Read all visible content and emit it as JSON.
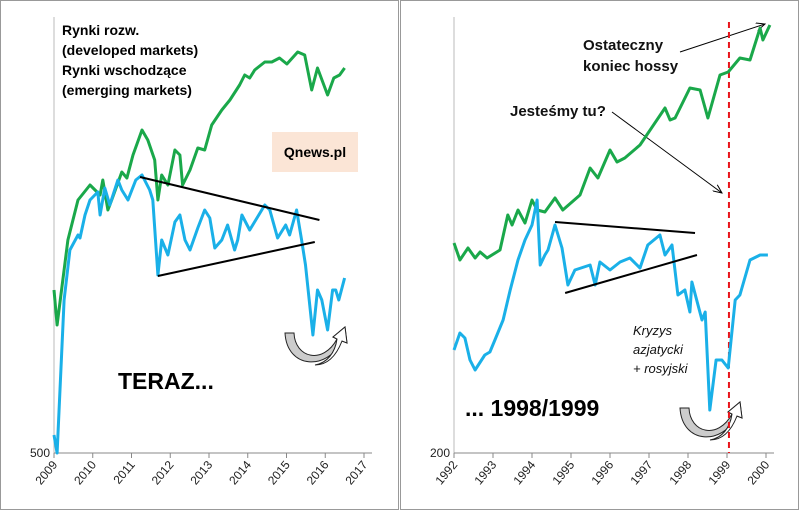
{
  "colors": {
    "developed": "#1aa84a",
    "emerging": "#1ab0e8",
    "trend": "#000000",
    "marker": "#e8141b",
    "badge_bg": "#fbe5d6"
  },
  "chart_data": [
    {
      "type": "line",
      "title": "",
      "xlabel": "",
      "ylabel": "",
      "xlim": [
        2009,
        2017
      ],
      "ylim": [
        500,
        936
      ],
      "x_ticks": [
        "2009",
        "2010",
        "2011",
        "2012",
        "2013",
        "2014",
        "2015",
        "2016",
        "2017"
      ],
      "y_ticks": [
        "500"
      ],
      "grid": false,
      "legend": [
        "Rynki rozw.",
        "(developed markets)",
        "Rynki wschodzące",
        "(emerging markets)"
      ],
      "legend_placement": "top-left",
      "badge": "Qnews.pl",
      "label": "TERAZ...",
      "series": [
        {
          "name": "Rynki rozw. (developed markets)",
          "color_key": "developed",
          "points": [
            [
              2009.0,
              663
            ],
            [
              2009.08,
              628
            ],
            [
              2009.36,
              713
            ],
            [
              2009.62,
              753
            ],
            [
              2009.93,
              768
            ],
            [
              2010.19,
              758
            ],
            [
              2010.26,
              773
            ],
            [
              2010.39,
              743
            ],
            [
              2010.49,
              753
            ],
            [
              2010.75,
              781
            ],
            [
              2010.88,
              775
            ],
            [
              2011.04,
              798
            ],
            [
              2011.27,
              823
            ],
            [
              2011.42,
              813
            ],
            [
              2011.6,
              793
            ],
            [
              2011.68,
              753
            ],
            [
              2011.78,
              778
            ],
            [
              2011.94,
              768
            ],
            [
              2012.12,
              803
            ],
            [
              2012.25,
              798
            ],
            [
              2012.32,
              768
            ],
            [
              2012.51,
              783
            ],
            [
              2012.71,
              805
            ],
            [
              2012.89,
              803
            ],
            [
              2013.07,
              828
            ],
            [
              2013.33,
              843
            ],
            [
              2013.54,
              853
            ],
            [
              2013.79,
              868
            ],
            [
              2013.92,
              878
            ],
            [
              2014.05,
              875
            ],
            [
              2014.18,
              883
            ],
            [
              2014.44,
              891
            ],
            [
              2014.62,
              891
            ],
            [
              2014.82,
              895
            ],
            [
              2015.01,
              889
            ],
            [
              2015.29,
              901
            ],
            [
              2015.47,
              898
            ],
            [
              2015.65,
              863
            ],
            [
              2015.8,
              885
            ],
            [
              2016.06,
              858
            ],
            [
              2016.22,
              875
            ],
            [
              2016.37,
              878
            ],
            [
              2016.5,
              885
            ]
          ]
        },
        {
          "name": "Rynki wschodzące (emerging markets)",
          "color_key": "emerging",
          "points": [
            [
              2009.0,
              518
            ],
            [
              2009.08,
              500
            ],
            [
              2009.26,
              653
            ],
            [
              2009.41,
              703
            ],
            [
              2009.62,
              718
            ],
            [
              2009.67,
              715
            ],
            [
              2009.8,
              738
            ],
            [
              2009.93,
              753
            ],
            [
              2010.13,
              761
            ],
            [
              2010.19,
              738
            ],
            [
              2010.31,
              765
            ],
            [
              2010.44,
              748
            ],
            [
              2010.65,
              773
            ],
            [
              2010.75,
              763
            ],
            [
              2010.91,
              753
            ],
            [
              2011.11,
              773
            ],
            [
              2011.27,
              778
            ],
            [
              2011.47,
              763
            ],
            [
              2011.55,
              753
            ],
            [
              2011.68,
              678
            ],
            [
              2011.78,
              713
            ],
            [
              2011.94,
              698
            ],
            [
              2012.12,
              731
            ],
            [
              2012.25,
              738
            ],
            [
              2012.38,
              713
            ],
            [
              2012.51,
              703
            ],
            [
              2012.71,
              725
            ],
            [
              2012.89,
              743
            ],
            [
              2013.02,
              735
            ],
            [
              2013.15,
              705
            ],
            [
              2013.33,
              713
            ],
            [
              2013.48,
              728
            ],
            [
              2013.66,
              703
            ],
            [
              2013.74,
              713
            ],
            [
              2013.85,
              738
            ],
            [
              2014.05,
              723
            ],
            [
              2014.44,
              748
            ],
            [
              2014.57,
              743
            ],
            [
              2014.77,
              715
            ],
            [
              2014.98,
              728
            ],
            [
              2015.08,
              718
            ],
            [
              2015.26,
              743
            ],
            [
              2015.39,
              713
            ],
            [
              2015.49,
              688
            ],
            [
              2015.68,
              618
            ],
            [
              2015.8,
              663
            ],
            [
              2015.91,
              653
            ],
            [
              2016.06,
              623
            ],
            [
              2016.19,
              663
            ],
            [
              2016.27,
              663
            ],
            [
              2016.35,
              653
            ],
            [
              2016.5,
              675
            ]
          ]
        }
      ],
      "trendlines": [
        [
          [
            2011.22,
            776
          ],
          [
            2015.85,
            733
          ]
        ],
        [
          [
            2011.68,
            677
          ],
          [
            2015.73,
            711
          ]
        ]
      ]
    },
    {
      "type": "line",
      "title": "",
      "xlabel": "",
      "ylabel": "",
      "xlim": [
        1992,
        2000.2
      ],
      "ylim": [
        200,
        636
      ],
      "x_ticks": [
        "1992",
        "1993",
        "1994",
        "1995",
        "1996",
        "1997",
        "1998",
        "1999",
        "2000"
      ],
      "y_ticks": [
        "200"
      ],
      "grid": false,
      "label": "... 1998/1999",
      "annotations": {
        "top": [
          "Ostateczny",
          "koniec hossy"
        ],
        "middle": "Jesteśmy tu?",
        "crisis": [
          "Kryzys",
          "azjatycki",
          "+ rosyjski"
        ]
      },
      "marker_x": 1999.05,
      "series": [
        {
          "name": "Rynki rozw. (developed markets)",
          "color_key": "developed",
          "points": [
            [
              1992.0,
              410
            ],
            [
              1992.15,
              393
            ],
            [
              1992.36,
              405
            ],
            [
              1992.54,
              395
            ],
            [
              1992.67,
              401
            ],
            [
              1992.85,
              395
            ],
            [
              1993.18,
              403
            ],
            [
              1993.38,
              438
            ],
            [
              1993.49,
              428
            ],
            [
              1993.64,
              443
            ],
            [
              1993.82,
              430
            ],
            [
              1994.0,
              453
            ],
            [
              1994.13,
              443
            ],
            [
              1994.33,
              441
            ],
            [
              1994.59,
              455
            ],
            [
              1994.79,
              443
            ],
            [
              1995.23,
              458
            ],
            [
              1995.49,
              485
            ],
            [
              1995.69,
              475
            ],
            [
              1996.0,
              503
            ],
            [
              1996.18,
              491
            ],
            [
              1996.38,
              495
            ],
            [
              1996.77,
              508
            ],
            [
              1997.41,
              545
            ],
            [
              1997.54,
              533
            ],
            [
              1997.67,
              535
            ],
            [
              1998.05,
              565
            ],
            [
              1998.31,
              563
            ],
            [
              1998.51,
              535
            ],
            [
              1998.82,
              578
            ],
            [
              1999.03,
              581
            ],
            [
              1999.33,
              595
            ],
            [
              1999.59,
              593
            ],
            [
              1999.85,
              625
            ],
            [
              1999.92,
              613
            ],
            [
              2000.1,
              628
            ]
          ]
        },
        {
          "name": "Rynki wschodzące (emerging markets)",
          "color_key": "emerging",
          "points": [
            [
              1992.0,
              303
            ],
            [
              1992.15,
              320
            ],
            [
              1992.28,
              315
            ],
            [
              1992.41,
              293
            ],
            [
              1992.54,
              283
            ],
            [
              1992.79,
              298
            ],
            [
              1992.92,
              301
            ],
            [
              1993.05,
              313
            ],
            [
              1993.26,
              333
            ],
            [
              1993.44,
              363
            ],
            [
              1993.64,
              393
            ],
            [
              1993.82,
              413
            ],
            [
              1994.0,
              428
            ],
            [
              1994.13,
              453
            ],
            [
              1994.21,
              388
            ],
            [
              1994.33,
              398
            ],
            [
              1994.41,
              403
            ],
            [
              1994.59,
              428
            ],
            [
              1994.77,
              405
            ],
            [
              1994.92,
              368
            ],
            [
              1995.1,
              383
            ],
            [
              1995.49,
              388
            ],
            [
              1995.62,
              368
            ],
            [
              1995.74,
              391
            ],
            [
              1996.0,
              383
            ],
            [
              1996.26,
              391
            ],
            [
              1996.51,
              395
            ],
            [
              1996.77,
              385
            ],
            [
              1996.97,
              408
            ],
            [
              1997.28,
              418
            ],
            [
              1997.41,
              398
            ],
            [
              1997.59,
              408
            ],
            [
              1997.74,
              358
            ],
            [
              1997.92,
              363
            ],
            [
              1998.05,
              341
            ],
            [
              1998.1,
              371
            ],
            [
              1998.36,
              333
            ],
            [
              1998.44,
              341
            ],
            [
              1998.56,
              243
            ],
            [
              1998.72,
              293
            ],
            [
              1998.87,
              293
            ],
            [
              1999.03,
              285
            ],
            [
              1999.21,
              353
            ],
            [
              1999.33,
              358
            ],
            [
              1999.59,
              393
            ],
            [
              1999.85,
              398
            ],
            [
              2000.05,
              398
            ]
          ]
        }
      ],
      "trendlines": [
        [
          [
            1994.59,
            431
          ],
          [
            1998.18,
            420
          ]
        ],
        [
          [
            1994.85,
            360
          ],
          [
            1998.23,
            398
          ]
        ]
      ]
    }
  ]
}
